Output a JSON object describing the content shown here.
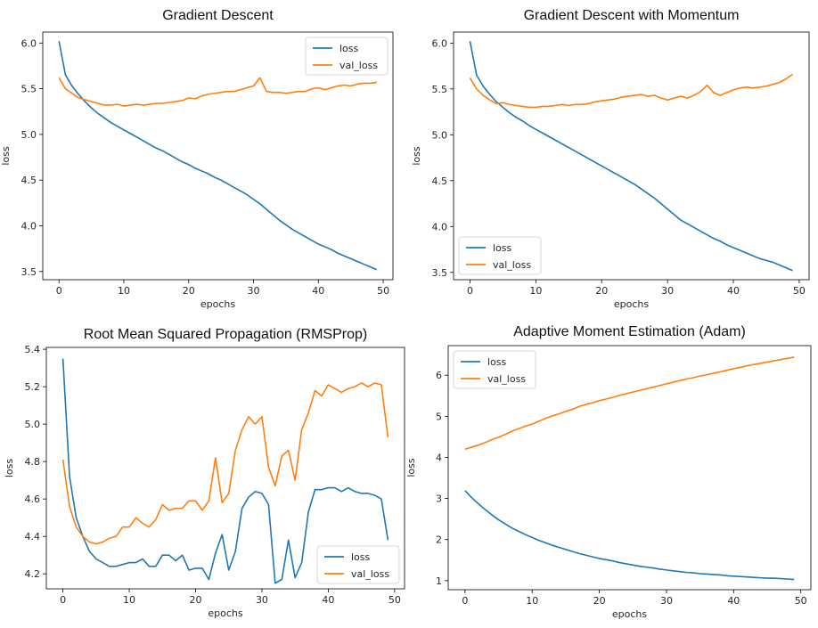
{
  "chart_data": [
    {
      "type": "line",
      "title": "Gradient Descent",
      "xlabel": "epochs",
      "ylabel": "loss",
      "xlim": [
        -2.5,
        51.5
      ],
      "ylim": [
        3.41,
        6.12
      ],
      "xticks": [
        0,
        10,
        20,
        30,
        40,
        50
      ],
      "yticks": [
        3.5,
        4.0,
        4.5,
        5.0,
        5.5,
        6.0
      ],
      "ytick_labels": [
        "3.5",
        "4.0",
        "4.5",
        "5.0",
        "5.5",
        "6.0"
      ],
      "legend": "top-right",
      "x": [
        0,
        1,
        2,
        3,
        4,
        5,
        6,
        7,
        8,
        9,
        10,
        11,
        12,
        13,
        14,
        15,
        16,
        17,
        18,
        19,
        20,
        21,
        22,
        23,
        24,
        25,
        26,
        27,
        28,
        29,
        30,
        31,
        32,
        33,
        34,
        35,
        36,
        37,
        38,
        39,
        40,
        41,
        42,
        43,
        44,
        45,
        46,
        47,
        48,
        49
      ],
      "series": [
        {
          "name": "loss",
          "color": "#1f77b4",
          "values": [
            6.02,
            5.65,
            5.53,
            5.44,
            5.36,
            5.29,
            5.23,
            5.18,
            5.13,
            5.09,
            5.05,
            5.01,
            4.97,
            4.93,
            4.89,
            4.85,
            4.82,
            4.78,
            4.74,
            4.7,
            4.67,
            4.63,
            4.6,
            4.57,
            4.53,
            4.5,
            4.46,
            4.42,
            4.38,
            4.34,
            4.29,
            4.24,
            4.18,
            4.12,
            4.06,
            4.01,
            3.96,
            3.92,
            3.88,
            3.84,
            3.8,
            3.77,
            3.74,
            3.7,
            3.67,
            3.64,
            3.61,
            3.58,
            3.55,
            3.52
          ]
        },
        {
          "name": "val_loss",
          "color": "#ff7f0e",
          "values": [
            5.62,
            5.5,
            5.45,
            5.4,
            5.38,
            5.36,
            5.34,
            5.32,
            5.32,
            5.33,
            5.31,
            5.32,
            5.33,
            5.32,
            5.33,
            5.34,
            5.34,
            5.35,
            5.36,
            5.37,
            5.4,
            5.39,
            5.42,
            5.44,
            5.45,
            5.46,
            5.47,
            5.47,
            5.49,
            5.51,
            5.53,
            5.62,
            5.47,
            5.46,
            5.46,
            5.45,
            5.46,
            5.47,
            5.47,
            5.5,
            5.51,
            5.49,
            5.51,
            5.53,
            5.54,
            5.53,
            5.55,
            5.56,
            5.56,
            5.57
          ]
        }
      ]
    },
    {
      "type": "line",
      "title": "Gradient Descent with Momentum",
      "xlabel": "epochs",
      "ylabel": "loss",
      "xlim": [
        -2.5,
        51.5
      ],
      "ylim": [
        3.42,
        6.12
      ],
      "xticks": [
        0,
        10,
        20,
        30,
        40,
        50
      ],
      "yticks": [
        3.5,
        4.0,
        4.5,
        5.0,
        5.5,
        6.0
      ],
      "ytick_labels": [
        "3.5",
        "4.0",
        "4.5",
        "5.0",
        "5.5",
        "6.0"
      ],
      "legend": "bottom-left",
      "x": [
        0,
        1,
        2,
        3,
        4,
        5,
        6,
        7,
        8,
        9,
        10,
        11,
        12,
        13,
        14,
        15,
        16,
        17,
        18,
        19,
        20,
        21,
        22,
        23,
        24,
        25,
        26,
        27,
        28,
        29,
        30,
        31,
        32,
        33,
        34,
        35,
        36,
        37,
        38,
        39,
        40,
        41,
        42,
        43,
        44,
        45,
        46,
        47,
        48,
        49
      ],
      "series": [
        {
          "name": "loss",
          "color": "#1f77b4",
          "values": [
            6.02,
            5.65,
            5.53,
            5.44,
            5.36,
            5.3,
            5.24,
            5.19,
            5.15,
            5.1,
            5.06,
            5.02,
            4.98,
            4.94,
            4.9,
            4.86,
            4.82,
            4.78,
            4.74,
            4.7,
            4.66,
            4.62,
            4.58,
            4.54,
            4.5,
            4.46,
            4.41,
            4.36,
            4.31,
            4.25,
            4.19,
            4.13,
            4.07,
            4.03,
            3.99,
            3.95,
            3.91,
            3.87,
            3.84,
            3.8,
            3.77,
            3.74,
            3.71,
            3.68,
            3.65,
            3.63,
            3.61,
            3.58,
            3.55,
            3.52
          ]
        },
        {
          "name": "val_loss",
          "color": "#ff7f0e",
          "values": [
            5.62,
            5.5,
            5.43,
            5.38,
            5.34,
            5.35,
            5.33,
            5.32,
            5.31,
            5.3,
            5.3,
            5.31,
            5.31,
            5.32,
            5.33,
            5.32,
            5.33,
            5.33,
            5.34,
            5.36,
            5.37,
            5.38,
            5.39,
            5.41,
            5.42,
            5.43,
            5.44,
            5.42,
            5.43,
            5.4,
            5.38,
            5.4,
            5.42,
            5.4,
            5.43,
            5.47,
            5.54,
            5.46,
            5.43,
            5.46,
            5.49,
            5.51,
            5.52,
            5.51,
            5.52,
            5.53,
            5.55,
            5.57,
            5.61,
            5.66
          ]
        }
      ]
    },
    {
      "type": "line",
      "title": "Root Mean Squared Propagation (RMSProp)",
      "xlabel": "epochs",
      "ylabel": "loss",
      "xlim": [
        -2.5,
        51.5
      ],
      "ylim": [
        4.12,
        5.41
      ],
      "xticks": [
        0,
        10,
        20,
        30,
        40,
        50
      ],
      "yticks": [
        4.2,
        4.4,
        4.6,
        4.8,
        5.0,
        5.2,
        5.4
      ],
      "ytick_labels": [
        "4.2",
        "4.4",
        "4.6",
        "4.8",
        "5.0",
        "5.2",
        "5.4"
      ],
      "legend": "bottom-right",
      "x": [
        0,
        1,
        2,
        3,
        4,
        5,
        6,
        7,
        8,
        9,
        10,
        11,
        12,
        13,
        14,
        15,
        16,
        17,
        18,
        19,
        20,
        21,
        22,
        23,
        24,
        25,
        26,
        27,
        28,
        29,
        30,
        31,
        32,
        33,
        34,
        35,
        36,
        37,
        38,
        39,
        40,
        41,
        42,
        43,
        44,
        45,
        46,
        47,
        48,
        49
      ],
      "series": [
        {
          "name": "loss",
          "color": "#1f77b4",
          "values": [
            5.35,
            4.72,
            4.5,
            4.4,
            4.32,
            4.28,
            4.26,
            4.24,
            4.24,
            4.25,
            4.26,
            4.26,
            4.28,
            4.24,
            4.24,
            4.3,
            4.3,
            4.27,
            4.3,
            4.22,
            4.23,
            4.23,
            4.17,
            4.31,
            4.41,
            4.22,
            4.32,
            4.55,
            4.61,
            4.64,
            4.63,
            4.57,
            4.15,
            4.17,
            4.38,
            4.18,
            4.26,
            4.53,
            4.65,
            4.65,
            4.66,
            4.66,
            4.64,
            4.66,
            4.64,
            4.63,
            4.63,
            4.62,
            4.6,
            4.38
          ]
        },
        {
          "name": "val_loss",
          "color": "#ff7f0e",
          "values": [
            4.81,
            4.56,
            4.45,
            4.4,
            4.37,
            4.36,
            4.37,
            4.39,
            4.4,
            4.45,
            4.45,
            4.5,
            4.47,
            4.45,
            4.49,
            4.57,
            4.54,
            4.55,
            4.55,
            4.59,
            4.59,
            4.54,
            4.59,
            4.82,
            4.58,
            4.63,
            4.86,
            4.97,
            5.04,
            5.0,
            5.04,
            4.77,
            4.67,
            4.83,
            4.86,
            4.7,
            4.97,
            5.06,
            5.18,
            5.15,
            5.21,
            5.19,
            5.17,
            5.19,
            5.2,
            5.22,
            5.2,
            5.22,
            5.21,
            4.93
          ]
        }
      ]
    },
    {
      "type": "line",
      "title": "Adaptive Moment Estimation (Adam)",
      "xlabel": "epochs",
      "ylabel": "loss",
      "xlim": [
        -2.5,
        51.5
      ],
      "ylim": [
        0.78,
        6.72
      ],
      "xticks": [
        0,
        10,
        20,
        30,
        40,
        50
      ],
      "yticks": [
        1,
        2,
        3,
        4,
        5,
        6
      ],
      "ytick_labels": [
        "1",
        "2",
        "3",
        "4",
        "5",
        "6"
      ],
      "legend": "top-left",
      "x": [
        0,
        1,
        2,
        3,
        4,
        5,
        6,
        7,
        8,
        9,
        10,
        11,
        12,
        13,
        14,
        15,
        16,
        17,
        18,
        19,
        20,
        21,
        22,
        23,
        24,
        25,
        26,
        27,
        28,
        29,
        30,
        31,
        32,
        33,
        34,
        35,
        36,
        37,
        38,
        39,
        40,
        41,
        42,
        43,
        44,
        45,
        46,
        47,
        48,
        49
      ],
      "series": [
        {
          "name": "loss",
          "color": "#1f77b4",
          "values": [
            3.19,
            3.02,
            2.87,
            2.73,
            2.6,
            2.48,
            2.38,
            2.28,
            2.2,
            2.12,
            2.05,
            1.98,
            1.92,
            1.86,
            1.81,
            1.76,
            1.71,
            1.66,
            1.62,
            1.58,
            1.54,
            1.51,
            1.48,
            1.44,
            1.41,
            1.38,
            1.35,
            1.33,
            1.31,
            1.28,
            1.26,
            1.24,
            1.22,
            1.2,
            1.19,
            1.17,
            1.16,
            1.15,
            1.14,
            1.12,
            1.11,
            1.1,
            1.09,
            1.08,
            1.07,
            1.06,
            1.06,
            1.05,
            1.04,
            1.03
          ]
        },
        {
          "name": "val_loss",
          "color": "#ff7f0e",
          "values": [
            4.2,
            4.25,
            4.3,
            4.36,
            4.43,
            4.49,
            4.56,
            4.64,
            4.7,
            4.76,
            4.81,
            4.88,
            4.95,
            5.01,
            5.06,
            5.12,
            5.17,
            5.24,
            5.29,
            5.33,
            5.38,
            5.42,
            5.46,
            5.51,
            5.55,
            5.59,
            5.63,
            5.67,
            5.71,
            5.75,
            5.79,
            5.83,
            5.87,
            5.91,
            5.94,
            5.98,
            6.01,
            6.05,
            6.08,
            6.12,
            6.16,
            6.19,
            6.23,
            6.26,
            6.29,
            6.32,
            6.35,
            6.38,
            6.41,
            6.44
          ]
        }
      ]
    }
  ]
}
